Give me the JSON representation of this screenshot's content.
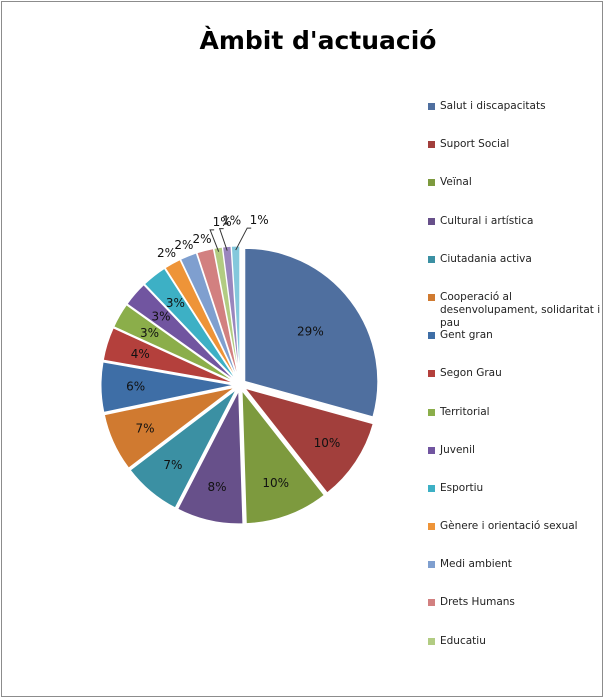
{
  "chart_data": {
    "type": "pie",
    "title": "Àmbit d'actuació",
    "legend_position": "right",
    "exploded": true,
    "slices": [
      {
        "name": "Salut i discapacitats",
        "value": 29,
        "label": "29%",
        "color": "#4f6f9f"
      },
      {
        "name": "Suport Social",
        "value": 10,
        "label": "10%",
        "color": "#a23f3c"
      },
      {
        "name": "Veïnal",
        "value": 10,
        "label": "10%",
        "color": "#7d9a3e"
      },
      {
        "name": "Cultural i artística",
        "value": 8,
        "label": "8%",
        "color": "#67508a"
      },
      {
        "name": "Ciutadania activa",
        "value": 7,
        "label": "7%",
        "color": "#3b90a3"
      },
      {
        "name": "Cooperació al desenvolupament, solidaritat i pau",
        "value": 7,
        "label": "7%",
        "color": "#d07a30"
      },
      {
        "name": "Gent gran",
        "value": 6,
        "label": "6%",
        "color": "#3e6ea6"
      },
      {
        "name": "Segon Grau",
        "value": 4,
        "label": "4%",
        "color": "#b4403c"
      },
      {
        "name": "Territorial",
        "value": 3,
        "label": "3%",
        "color": "#8bae4a"
      },
      {
        "name": "Juvenil",
        "value": 3,
        "label": "3%",
        "color": "#7155a0"
      },
      {
        "name": "Esportiu",
        "value": 3,
        "label": "3%",
        "color": "#3db0c5"
      },
      {
        "name": "Gènere i orientació sexual",
        "value": 2,
        "label": "2%",
        "color": "#ee9438"
      },
      {
        "name": "Medi ambient",
        "value": 2,
        "label": "2%",
        "color": "#7f9fcf"
      },
      {
        "name": "Drets Humans",
        "value": 2,
        "label": "2%",
        "color": "#d28080"
      },
      {
        "name": "Educatiu",
        "value": 1,
        "label": "1%",
        "color": "#b2cc82"
      },
      {
        "name": "",
        "value": 1,
        "label": "1%",
        "color": "#9a86bd"
      },
      {
        "name": "",
        "value": 1,
        "label": "1%",
        "color": "#84c8dc"
      }
    ]
  }
}
